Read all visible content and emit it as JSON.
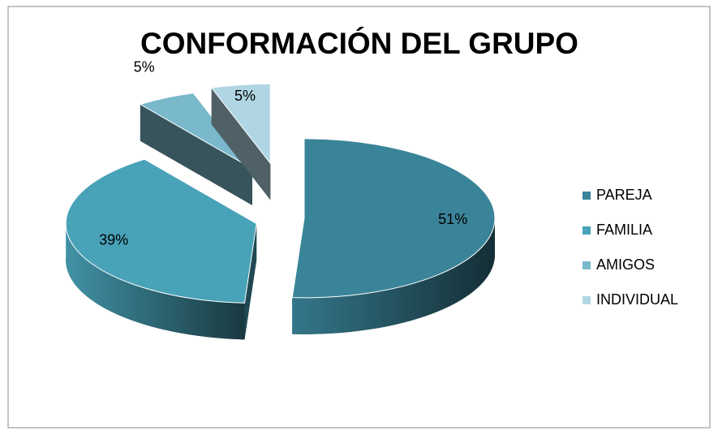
{
  "chart_data": {
    "type": "pie",
    "title": "CONFORMACIÓN DEL GRUPO",
    "categories": [
      "PAREJA",
      "FAMILIA",
      "AMIGOS",
      "INDIVIDUAL"
    ],
    "values": [
      51,
      39,
      5,
      5
    ],
    "value_labels": [
      "51%",
      "39%",
      "5%",
      "5%"
    ],
    "colors": [
      "#3a8499",
      "#48a2b8",
      "#7ab8cc",
      "#b0d6e3"
    ],
    "legend": "right"
  }
}
